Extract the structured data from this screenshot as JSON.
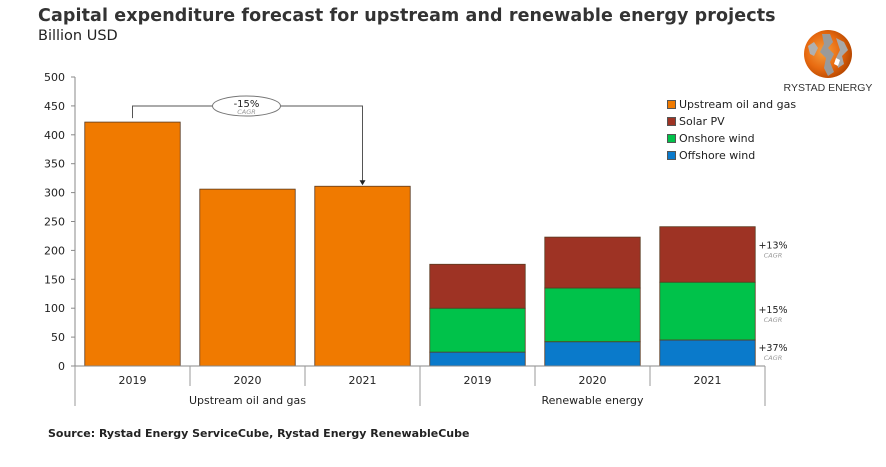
{
  "header": {
    "title": "Capital expenditure forecast for upstream and renewable energy projects",
    "subtitle": "Billion USD"
  },
  "logo": {
    "icon": "globe-logo-icon",
    "text": "RYSTAD ENERGY"
  },
  "footer": {
    "source": "Source: Rystad Energy ServiceCube, Rystad Energy RenewableCube"
  },
  "colors": {
    "upstream": "#F07A00",
    "solar": "#9E3324",
    "onshore": "#00C24A",
    "offshore": "#0A7ACB"
  },
  "chart_data": {
    "type": "bar",
    "stacked": true,
    "title": "Capital expenditure forecast for upstream and renewable energy projects",
    "ylabel": "Billion USD",
    "xlabel": "",
    "ylim": [
      0,
      500
    ],
    "yticks": [
      0,
      50,
      100,
      150,
      200,
      250,
      300,
      350,
      400,
      450,
      500
    ],
    "grid": false,
    "legend_position": "top-right",
    "groups": [
      {
        "label": "Upstream oil and gas",
        "categories": [
          "2019",
          "2020",
          "2021"
        ]
      },
      {
        "label": "Renewable energy",
        "categories": [
          "2019",
          "2020",
          "2021"
        ]
      }
    ],
    "categories": [
      "2019",
      "2020",
      "2021",
      "2019",
      "2020",
      "2021"
    ],
    "series": [
      {
        "name": "Upstream oil and gas",
        "color": "#F07A00",
        "values": [
          422,
          306,
          311,
          0,
          0,
          0
        ]
      },
      {
        "name": "Offshore wind",
        "color": "#0A7ACB",
        "values": [
          0,
          0,
          0,
          24,
          42,
          45
        ]
      },
      {
        "name": "Onshore wind",
        "color": "#00C24A",
        "values": [
          0,
          0,
          0,
          76,
          93,
          100
        ]
      },
      {
        "name": "Solar PV",
        "color": "#9E3324",
        "values": [
          0,
          0,
          0,
          76,
          88,
          96
        ]
      }
    ],
    "legend": [
      "Upstream oil and gas",
      "Solar PV",
      "Onshore wind",
      "Offshore wind"
    ],
    "annotations": [
      {
        "text": "-15%",
        "subtext": "CAGR",
        "target": "Upstream oil and gas 2019→2021"
      },
      {
        "text": "+13%",
        "subtext": "CAGR",
        "target": "Solar PV"
      },
      {
        "text": "+15%",
        "subtext": "CAGR",
        "target": "Onshore wind"
      },
      {
        "text": "+37%",
        "subtext": "CAGR",
        "target": "Offshore wind"
      }
    ]
  }
}
